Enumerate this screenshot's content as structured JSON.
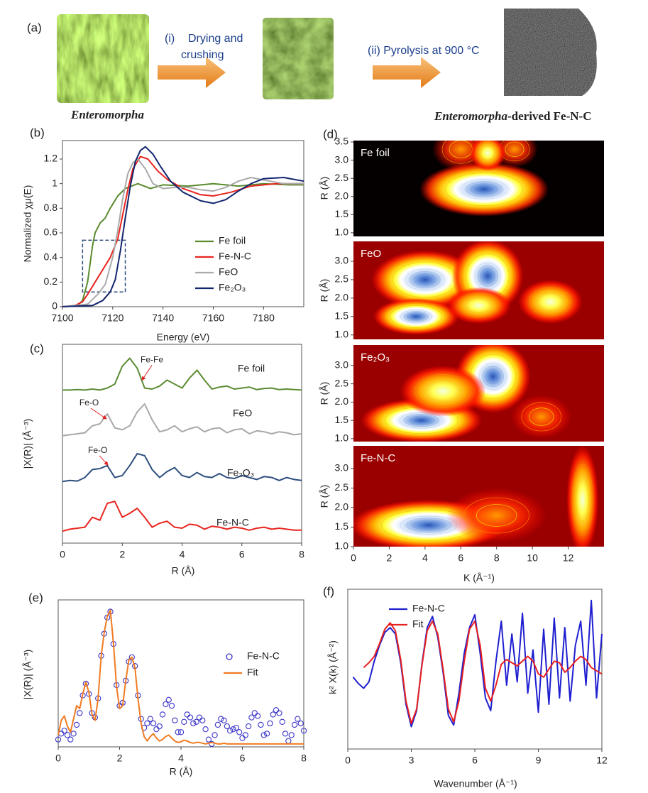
{
  "schematic": {
    "label": "(a)",
    "start": "Enteromorpha",
    "step1": [
      "(i)",
      "Drying and",
      "crushing"
    ],
    "step2": "(ii) Pyrolysis at 900 °C",
    "product": [
      "Enteromorpha",
      "-derived Fe-N-C"
    ]
  },
  "chart_data": [
    {
      "type": "line",
      "label": "(b)",
      "xlabel": "Energy (eV)",
      "ylabel": "Normalized χμ(E)",
      "xlim": [
        7100,
        7196
      ],
      "xticks": [
        7100,
        7120,
        7140,
        7160,
        7180
      ],
      "ylim": [
        0,
        1.35
      ],
      "yticks": [
        0,
        0.2,
        0.4,
        0.6,
        0.8,
        1,
        1.2
      ],
      "highlight": {
        "x": [
          7108,
          7125
        ],
        "y": [
          0.12,
          0.54
        ]
      },
      "series": [
        {
          "name": "Fe foil",
          "color": "#5a8a2e",
          "x": [
            7100,
            7106,
            7108,
            7110,
            7111,
            7112,
            7113,
            7115,
            7117,
            7119,
            7122,
            7125,
            7130,
            7135,
            7140,
            7150,
            7160,
            7170,
            7180,
            7190,
            7196
          ],
          "values": [
            0,
            0.01,
            0.05,
            0.2,
            0.35,
            0.5,
            0.6,
            0.68,
            0.72,
            0.8,
            0.9,
            0.96,
            1.0,
            0.96,
            0.99,
            0.98,
            1.0,
            0.98,
            1.0,
            0.99,
            0.99
          ]
        },
        {
          "name": "Fe-N-C",
          "color": "#e8251f",
          "x": [
            7100,
            7105,
            7108,
            7110,
            7113,
            7116,
            7119,
            7122,
            7124,
            7126,
            7128,
            7131,
            7134,
            7138,
            7142,
            7148,
            7155,
            7160,
            7167,
            7175,
            7185,
            7196
          ],
          "values": [
            0,
            0.01,
            0.04,
            0.1,
            0.2,
            0.3,
            0.4,
            0.55,
            0.75,
            0.95,
            1.12,
            1.22,
            1.2,
            1.1,
            1.03,
            0.96,
            0.91,
            0.9,
            0.93,
            0.98,
            1.0,
            1.0
          ]
        },
        {
          "name": "FeO",
          "color": "#aaaaaa",
          "x": [
            7100,
            7110,
            7114,
            7117,
            7120,
            7122,
            7124,
            7126,
            7128,
            7130,
            7133,
            7136,
            7140,
            7145,
            7150,
            7155,
            7160,
            7165,
            7170,
            7175,
            7180,
            7188,
            7196
          ],
          "values": [
            0,
            0.02,
            0.1,
            0.18,
            0.4,
            0.62,
            0.88,
            1.08,
            1.17,
            1.2,
            1.12,
            1.0,
            0.96,
            0.97,
            0.97,
            0.95,
            0.94,
            0.97,
            1.02,
            1.05,
            1.03,
            1.0,
            1.0
          ]
        },
        {
          "name": "Fe₂O₃",
          "color": "#12256e",
          "x": [
            7100,
            7112,
            7116,
            7119,
            7121,
            7123,
            7125,
            7127,
            7129,
            7131,
            7133,
            7136,
            7139,
            7143,
            7148,
            7155,
            7160,
            7165,
            7170,
            7175,
            7180,
            7188,
            7196
          ],
          "values": [
            0,
            0.01,
            0.05,
            0.12,
            0.22,
            0.45,
            0.72,
            0.98,
            1.18,
            1.27,
            1.3,
            1.24,
            1.14,
            1.02,
            0.93,
            0.86,
            0.84,
            0.87,
            0.94,
            1.0,
            1.04,
            1.05,
            1.02
          ]
        }
      ]
    },
    {
      "type": "line",
      "label": "(c)",
      "xlabel": "R (Å)",
      "ylabel": "|X(R)| (Å⁻³)",
      "xlim": [
        0,
        8
      ],
      "xticks": [
        0,
        2,
        4,
        6,
        8
      ],
      "ylim": [
        0,
        10
      ],
      "x": [
        0,
        0.25,
        0.5,
        0.75,
        1,
        1.25,
        1.5,
        1.75,
        2,
        2.25,
        2.5,
        2.75,
        3,
        3.25,
        3.5,
        3.75,
        4,
        4.25,
        4.5,
        4.75,
        5,
        5.25,
        5.5,
        5.75,
        6,
        6.25,
        6.5,
        6.75,
        7,
        7.25,
        7.5,
        7.75,
        8
      ],
      "annotations": [
        {
          "text": "Fe-Fe",
          "x": 2.66,
          "y": 8.2
        },
        {
          "text": "Fe-O",
          "x": 1.47,
          "y": 6.25
        },
        {
          "text": "Fe-O",
          "x": 1.52,
          "y": 3.93
        }
      ],
      "series": [
        {
          "name": "Fe foil",
          "color": "#5b8c32",
          "values": [
            7.7,
            7.7,
            7.72,
            7.7,
            7.75,
            7.7,
            7.8,
            8.0,
            8.9,
            9.3,
            8.8,
            7.8,
            7.75,
            7.9,
            8.2,
            8.0,
            7.8,
            8.3,
            8.7,
            8.2,
            7.75,
            7.85,
            7.9,
            7.75,
            7.8,
            7.85,
            7.72,
            7.78,
            7.8,
            7.72,
            7.75,
            7.72,
            7.7
          ]
        },
        {
          "name": "FeO",
          "color": "#a8a8a8",
          "values": [
            5.4,
            5.45,
            5.5,
            5.55,
            5.9,
            6.0,
            6.5,
            5.8,
            5.7,
            5.9,
            6.6,
            7.0,
            6.2,
            5.6,
            5.7,
            5.9,
            5.6,
            5.75,
            5.85,
            5.6,
            5.75,
            5.8,
            5.55,
            5.7,
            5.75,
            5.5,
            5.65,
            5.6,
            5.5,
            5.6,
            5.55,
            5.45,
            5.5
          ]
        },
        {
          "name": "Fe₂O₃",
          "color": "#2d4e7e",
          "values": [
            3.1,
            3.15,
            3.12,
            3.3,
            3.7,
            3.75,
            3.9,
            3.3,
            3.4,
            3.9,
            4.5,
            4.4,
            3.7,
            3.3,
            3.6,
            3.8,
            3.4,
            3.3,
            3.55,
            3.35,
            3.3,
            3.5,
            3.3,
            3.25,
            3.4,
            3.3,
            3.2,
            3.35,
            3.3,
            3.15,
            3.3,
            3.2,
            3.15
          ]
        },
        {
          "name": "Fe-N-C",
          "color": "#e8251f",
          "values": [
            0.6,
            0.7,
            0.75,
            0.8,
            1.3,
            1.15,
            2.0,
            2.1,
            1.3,
            1.5,
            1.75,
            1.3,
            0.8,
            1.0,
            1.1,
            0.8,
            0.75,
            0.95,
            0.9,
            0.7,
            0.85,
            0.8,
            0.7,
            0.8,
            0.75,
            0.65,
            0.75,
            0.8,
            0.7,
            0.75,
            0.7,
            0.65,
            0.65
          ]
        }
      ]
    },
    {
      "type": "wavelet",
      "label": "(d)",
      "title": "Fe foil",
      "ylabel": "R (Å)",
      "background": "#050000",
      "xlim": [
        0,
        14
      ],
      "ylim": [
        0.9,
        3.54
      ],
      "yticks": [
        {
          "value": 1,
          "label": "1.0"
        },
        1.5,
        {
          "value": 2,
          "label": "2.0"
        },
        2.5,
        {
          "value": 3,
          "label": "3.0"
        },
        3.5
      ],
      "peaks": [
        {
          "x": 7.3,
          "y": 2.2,
          "rx": 3.6,
          "ry": 0.75,
          "level": 1
        },
        {
          "x": 6.0,
          "y": 3.3,
          "rx": 1.6,
          "ry": 0.6,
          "level": 0.5
        },
        {
          "x": 9.0,
          "y": 3.3,
          "rx": 1.3,
          "ry": 0.5,
          "level": 0.5
        },
        {
          "x": 7.5,
          "y": 3.2,
          "rx": 1.0,
          "ry": 0.5,
          "level": 0.7
        }
      ]
    },
    {
      "type": "wavelet",
      "title": "FeO",
      "ylabel": "R (Å)",
      "background": "#9a0000",
      "xlim": [
        0,
        14
      ],
      "ylim": [
        0.88,
        3.54
      ],
      "yticks": [
        {
          "value": 1,
          "label": "1.0"
        },
        1.5,
        {
          "value": 2,
          "label": "2.0"
        },
        2.5,
        {
          "value": 3,
          "label": "3.0"
        }
      ],
      "peaks": [
        {
          "x": 4.0,
          "y": 2.5,
          "rx": 3.0,
          "ry": 0.8,
          "level": 1
        },
        {
          "x": 7.5,
          "y": 2.6,
          "rx": 2.0,
          "ry": 1.0,
          "level": 1
        },
        {
          "x": 3.5,
          "y": 1.5,
          "rx": 2.4,
          "ry": 0.5,
          "level": 0.9
        },
        {
          "x": 11.0,
          "y": 1.9,
          "rx": 1.8,
          "ry": 0.6,
          "level": 0.7
        },
        {
          "x": 7.0,
          "y": 1.8,
          "rx": 1.8,
          "ry": 0.5,
          "level": 0.7
        }
      ]
    },
    {
      "type": "wavelet",
      "title": "Fe₂O₃",
      "ylabel": "R (Å)",
      "background": "#9a0000",
      "xlim": [
        0,
        14
      ],
      "ylim": [
        0.92,
        3.56
      ],
      "yticks": [
        {
          "value": 1,
          "label": "1.0"
        },
        1.5,
        {
          "value": 2,
          "label": "2.0"
        },
        2.5,
        {
          "value": 3,
          "label": "3.0"
        }
      ],
      "peaks": [
        {
          "x": 3.8,
          "y": 1.5,
          "rx": 3.4,
          "ry": 0.6,
          "level": 1
        },
        {
          "x": 7.8,
          "y": 2.7,
          "rx": 2.1,
          "ry": 1.0,
          "level": 1
        },
        {
          "x": 5.0,
          "y": 2.3,
          "rx": 2.4,
          "ry": 0.7,
          "level": 0.7
        },
        {
          "x": 10.5,
          "y": 1.6,
          "rx": 1.7,
          "ry": 0.6,
          "level": 0.5
        }
      ]
    },
    {
      "type": "wavelet",
      "title": "Fe-N-C",
      "ylabel": "R (Å)",
      "xlabel": "K (Å⁻¹)",
      "background": "#9a0000",
      "xlim": [
        0,
        14
      ],
      "xticks": [
        0,
        2,
        4,
        6,
        8,
        10,
        12
      ],
      "ylim": [
        1.0,
        3.58
      ],
      "yticks": [
        {
          "value": 1,
          "label": "1.0"
        },
        1.5,
        {
          "value": 2,
          "label": "2.0"
        },
        2.5,
        {
          "value": 3,
          "label": "3.0"
        }
      ],
      "peaks": [
        {
          "x": 4.2,
          "y": 1.55,
          "rx": 4.4,
          "ry": 0.65,
          "level": 1
        },
        {
          "x": 12.8,
          "y": 2.2,
          "rx": 0.9,
          "ry": 1.4,
          "level": 0.75
        },
        {
          "x": 8.0,
          "y": 1.8,
          "rx": 2.8,
          "ry": 0.7,
          "level": 0.45
        }
      ]
    },
    {
      "type": "line",
      "label": "(e)",
      "xlabel": "R (Å)",
      "ylabel": "|X(R)| (Å⁻³)",
      "xlim": [
        0,
        8
      ],
      "xticks": [
        0,
        2,
        4,
        6,
        8
      ],
      "ylim": [
        0,
        10
      ],
      "x": [
        0,
        0.1,
        0.2,
        0.3,
        0.4,
        0.5,
        0.6,
        0.7,
        0.8,
        0.9,
        1,
        1.1,
        1.2,
        1.3,
        1.4,
        1.5,
        1.6,
        1.7,
        1.8,
        1.9,
        2,
        2.1,
        2.2,
        2.3,
        2.4,
        2.5,
        2.6,
        2.7,
        2.8,
        2.9,
        3,
        3.1,
        3.2,
        3.3,
        3.4,
        3.5,
        3.6,
        3.7,
        3.8,
        3.9,
        4,
        4.1,
        4.2,
        4.3,
        4.4,
        4.5,
        4.6,
        4.7,
        4.8,
        4.9,
        5,
        5.1,
        5.2,
        5.3,
        5.4,
        5.5,
        5.6,
        5.7,
        5.8,
        5.9,
        6,
        6.1,
        6.2,
        6.3,
        6.4,
        6.5,
        6.6,
        6.7,
        6.8,
        6.9,
        7,
        7.1,
        7.2,
        7.3,
        7.4,
        7.5,
        7.6,
        7.7,
        7.8,
        7.9,
        8
      ],
      "series": [
        {
          "name": "Fe-N-C",
          "color": "#3a35c8",
          "marker": "circle",
          "values": [
            0.5,
            0.9,
            1.1,
            0.8,
            0.5,
            0.9,
            1.5,
            2.3,
            3.5,
            4.3,
            3.6,
            2.3,
            2.0,
            3.3,
            6.2,
            7.7,
            8.8,
            9.2,
            7.0,
            4.2,
            2.8,
            3.0,
            4.5,
            5.8,
            6.1,
            5.5,
            3.5,
            1.9,
            1.3,
            1.6,
            1.9,
            1.6,
            1.2,
            1.4,
            2.2,
            2.9,
            3.2,
            2.8,
            1.8,
            1.0,
            1.0,
            1.7,
            2.2,
            2.0,
            1.6,
            1.7,
            2.0,
            1.8,
            1.2,
            0.5,
            0.2,
            0.8,
            1.5,
            1.9,
            1.8,
            1.4,
            1.1,
            1.2,
            1.3,
            1.0,
            0.6,
            0.8,
            1.4,
            2.0,
            2.3,
            2.1,
            1.5,
            0.8,
            0.9,
            1.6,
            2.2,
            2.5,
            2.3,
            1.7,
            0.9,
            0.4,
            0.8,
            1.5,
            1.9,
            1.6,
            1.1
          ]
        },
        {
          "name": "Fit",
          "color": "#f07b22",
          "values": [
            0.8,
            1.8,
            2.1,
            1.4,
            1.0,
            1.9,
            2.8,
            2.6,
            3.6,
            4.4,
            3.7,
            2.2,
            1.8,
            3.3,
            6.2,
            7.8,
            8.9,
            9.3,
            7.0,
            4.1,
            2.6,
            2.8,
            4.5,
            5.9,
            6.1,
            5.4,
            3.3,
            1.6,
            0.7,
            0.4,
            0.7,
            0.9,
            0.6,
            0.4,
            0.5,
            0.7,
            0.8,
            0.6,
            0.4,
            0.3,
            0.35,
            0.45,
            0.4,
            0.3,
            0.25,
            0.3,
            0.3,
            0.25,
            0.2,
            0.25,
            0.3,
            0.25,
            0.2,
            0.2,
            0.25,
            0.2,
            0.2,
            0.2,
            0.2,
            0.2,
            0.2,
            0.2,
            0.2,
            0.2,
            0.2,
            0.2,
            0.2,
            0.2,
            0.2,
            0.2,
            0.2,
            0.2,
            0.2,
            0.2,
            0.2,
            0.2,
            0.2,
            0.2,
            0.2,
            0.2,
            0.2
          ]
        }
      ]
    },
    {
      "type": "line",
      "label": "(f)",
      "xlabel": "Wavenumber (Å⁻¹)",
      "ylabel": "k² X(k) (Å⁻²)",
      "xlim": [
        0,
        12
      ],
      "xticks": [
        0,
        3,
        6,
        9,
        12
      ],
      "ylim": [
        -5,
        5
      ],
      "x": [
        0,
        0.25,
        0.5,
        0.75,
        1,
        1.25,
        1.5,
        1.75,
        2,
        2.25,
        2.5,
        2.75,
        3,
        3.25,
        3.5,
        3.75,
        4,
        4.25,
        4.5,
        4.75,
        5,
        5.25,
        5.5,
        5.75,
        6,
        6.25,
        6.5,
        6.75,
        7,
        7.25,
        7.5,
        7.75,
        8,
        8.25,
        8.5,
        8.75,
        9,
        9.25,
        9.5,
        9.75,
        10,
        10.25,
        10.5,
        10.75,
        11,
        11.25,
        11.5,
        11.75,
        12
      ],
      "series": [
        {
          "name": "Fe-N-C",
          "color": "#1f1fd0",
          "values": [
            null,
            -0.5,
            -0.9,
            -1.2,
            -0.8,
            0.5,
            1.5,
            2.3,
            2.6,
            2.2,
            0.4,
            -2.2,
            -3.6,
            -2.6,
            0.3,
            2.6,
            3.3,
            2.0,
            -0.2,
            -2.9,
            -3.5,
            -1.5,
            1.0,
            2.6,
            3.4,
            1.0,
            -1.8,
            -2.6,
            0.5,
            3.0,
            -1.0,
            2.2,
            -0.8,
            3.5,
            -1.5,
            1.2,
            -2.7,
            2.5,
            -2.2,
            3.2,
            -1.8,
            2.6,
            -2.0,
            1.5,
            3.0,
            -1.0,
            4.3,
            -1.8,
            2.2
          ]
        },
        {
          "name": "Fit",
          "color": "#e82020",
          "values": [
            null,
            null,
            null,
            0.1,
            0.4,
            0.8,
            1.6,
            2.5,
            2.9,
            2.4,
            0.6,
            -2.0,
            -3.4,
            -2.5,
            0.2,
            2.4,
            3.0,
            2.2,
            0,
            -2.5,
            -3.3,
            -2.0,
            0.5,
            2.5,
            3.0,
            1.5,
            -1.2,
            -2.0,
            -1.0,
            0.3,
            0.6,
            0.4,
            0.2,
            0.5,
            0.8,
            0.5,
            -0.3,
            -0.5,
            0,
            0.5,
            0.4,
            -0.2,
            0.1,
            0.5,
            0.8,
            0.6,
            0.1,
            -0.1,
            -0.3
          ]
        }
      ]
    }
  ]
}
